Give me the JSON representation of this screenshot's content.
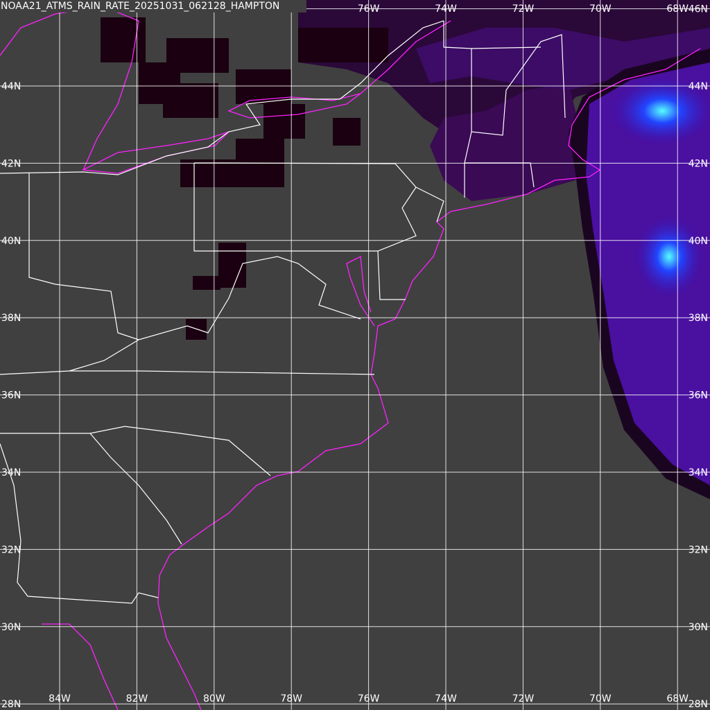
{
  "title": "NOAA21_ATMS_RAIN_RATE_20251031_062128_HAMPTON",
  "lat_labels": [
    "46N",
    "44N",
    "42N",
    "40N",
    "38N",
    "36N",
    "34N",
    "32N",
    "30N",
    "28N"
  ],
  "lon_labels": [
    "84W",
    "82W",
    "80W",
    "78W",
    "76W",
    "74W",
    "72W",
    "70W",
    "68W"
  ]
}
